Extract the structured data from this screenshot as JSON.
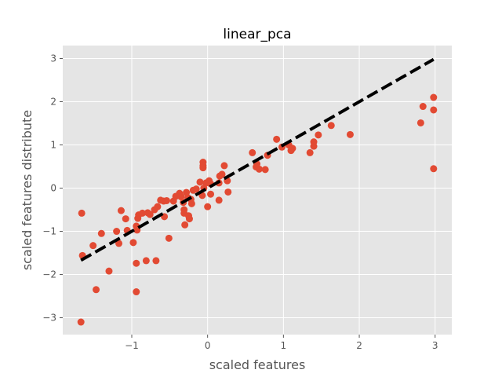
{
  "chart_data": {
    "type": "scatter",
    "title": "linear_pca",
    "xlabel": "scaled features",
    "ylabel": "scaled features distribute",
    "xlim": [
      -1.91,
      3.22
    ],
    "ylim": [
      -3.39,
      3.3
    ],
    "xticks": [
      -1,
      0,
      1,
      2,
      3
    ],
    "yticks": [
      -3,
      -2,
      -1,
      0,
      1,
      2,
      3
    ],
    "xtick_labels": [
      "−1",
      "0",
      "1",
      "2",
      "3"
    ],
    "ytick_labels": [
      "−3",
      "−2",
      "−1",
      "0",
      "1",
      "2",
      "3"
    ],
    "grid": true,
    "style": "ggplot",
    "colors": {
      "background": "#e5e5e5",
      "grid": "#ffffff",
      "points": "#e24a33",
      "line": "#000000"
    },
    "series": [
      {
        "kind": "scatter",
        "points": [
          [
            -1.67,
            -3.1
          ],
          [
            -1.66,
            -0.58
          ],
          [
            -1.65,
            -1.56
          ],
          [
            -1.51,
            -1.33
          ],
          [
            -1.47,
            -2.35
          ],
          [
            -1.4,
            -1.05
          ],
          [
            -1.3,
            -1.92
          ],
          [
            -1.2,
            -1.0
          ],
          [
            -1.17,
            -1.28
          ],
          [
            -1.14,
            -0.52
          ],
          [
            -1.08,
            -0.71
          ],
          [
            -1.06,
            -0.98
          ],
          [
            -0.98,
            -1.26
          ],
          [
            -0.94,
            -0.88
          ],
          [
            -0.94,
            -1.74
          ],
          [
            -0.94,
            -2.4
          ],
          [
            -0.93,
            -0.97
          ],
          [
            -0.92,
            -0.7
          ],
          [
            -0.91,
            -0.62
          ],
          [
            -0.86,
            -0.58
          ],
          [
            -0.81,
            -1.68
          ],
          [
            -0.79,
            -0.57
          ],
          [
            -0.76,
            -0.61
          ],
          [
            -0.7,
            -0.5
          ],
          [
            -0.68,
            -1.68
          ],
          [
            -0.66,
            -0.43
          ],
          [
            -0.62,
            -0.28
          ],
          [
            -0.58,
            -0.3
          ],
          [
            -0.57,
            -0.66
          ],
          [
            -0.54,
            -0.29
          ],
          [
            -0.51,
            -1.16
          ],
          [
            -0.45,
            -0.3
          ],
          [
            -0.42,
            -0.19
          ],
          [
            -0.37,
            -0.12
          ],
          [
            -0.35,
            -0.2
          ],
          [
            -0.32,
            -0.33
          ],
          [
            -0.31,
            -0.5
          ],
          [
            -0.31,
            -0.58
          ],
          [
            -0.3,
            -0.85
          ],
          [
            -0.28,
            -0.1
          ],
          [
            -0.26,
            -0.22
          ],
          [
            -0.25,
            -0.64
          ],
          [
            -0.24,
            -0.71
          ],
          [
            -0.22,
            -0.26
          ],
          [
            -0.21,
            -0.36
          ],
          [
            -0.19,
            -0.05
          ],
          [
            -0.15,
            -0.02
          ],
          [
            -0.1,
            0.14
          ],
          [
            -0.07,
            -0.17
          ],
          [
            -0.06,
            0.6
          ],
          [
            -0.06,
            0.52
          ],
          [
            -0.06,
            0.47
          ],
          [
            -0.05,
            0.0
          ],
          [
            -0.02,
            0.12
          ],
          [
            0.0,
            -0.43
          ],
          [
            0.02,
            0.17
          ],
          [
            0.04,
            -0.14
          ],
          [
            0.04,
            0.1
          ],
          [
            0.15,
            -0.28
          ],
          [
            0.15,
            0.12
          ],
          [
            0.16,
            0.28
          ],
          [
            0.19,
            0.32
          ],
          [
            0.22,
            0.52
          ],
          [
            0.26,
            0.17
          ],
          [
            0.27,
            -0.09
          ],
          [
            0.59,
            0.82
          ],
          [
            0.64,
            0.49
          ],
          [
            0.65,
            0.56
          ],
          [
            0.68,
            0.44
          ],
          [
            0.76,
            0.43
          ],
          [
            0.79,
            0.76
          ],
          [
            0.91,
            1.13
          ],
          [
            0.98,
            0.95
          ],
          [
            1.07,
            1.0
          ],
          [
            1.1,
            0.87
          ],
          [
            1.12,
            0.92
          ],
          [
            1.35,
            0.82
          ],
          [
            1.4,
            0.97
          ],
          [
            1.4,
            1.07
          ],
          [
            1.46,
            1.23
          ],
          [
            1.63,
            1.45
          ],
          [
            1.88,
            1.24
          ],
          [
            2.81,
            1.51
          ],
          [
            2.84,
            1.89
          ],
          [
            2.98,
            2.1
          ],
          [
            2.98,
            1.81
          ],
          [
            2.98,
            0.45
          ]
        ]
      },
      {
        "kind": "line",
        "style": "dashed",
        "points": [
          [
            -1.67,
            -1.67
          ],
          [
            2.98,
            2.98
          ]
        ]
      }
    ]
  }
}
